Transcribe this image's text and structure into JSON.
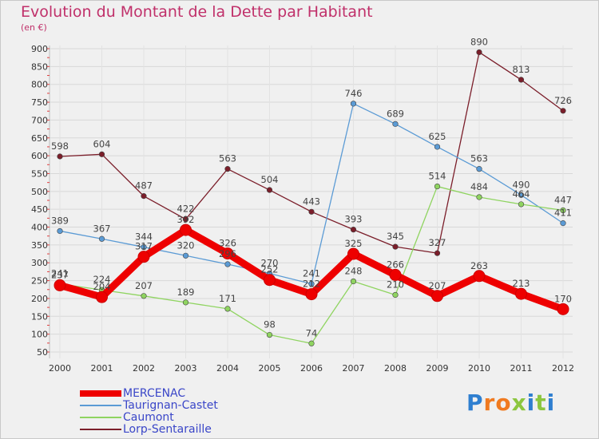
{
  "chart_data": {
    "type": "line",
    "title": "Evolution du Montant de la Dette par Habitant",
    "subtitle": "(en €)",
    "xlabel": "",
    "ylabel": "",
    "ylim": [
      50,
      900
    ],
    "yticks": [
      50,
      100,
      150,
      200,
      250,
      300,
      350,
      400,
      450,
      500,
      550,
      600,
      650,
      700,
      750,
      800,
      850,
      900
    ],
    "grid": true,
    "legend": "bottom-left",
    "categories": [
      "2000",
      "2001",
      "2002",
      "2003",
      "2004",
      "2005",
      "2006",
      "2007",
      "2008",
      "2009",
      "2010",
      "2011",
      "2012"
    ],
    "series": [
      {
        "name": "MERCENAC",
        "color": "#ee0000",
        "values": [
          237,
          204,
          317,
          392,
          326,
          252,
          212,
          325,
          266,
          207,
          263,
          213,
          170
        ],
        "labels": [
          "237",
          "204",
          "317",
          "392",
          "326",
          "252",
          "212",
          "325",
          "266",
          "207",
          "263",
          "213",
          "170"
        ]
      },
      {
        "name": "Taurignan-Castet",
        "color": "#5b9bd5",
        "values": [
          389,
          367,
          344,
          320,
          296,
          270,
          241,
          746,
          689,
          625,
          563,
          490,
          411
        ],
        "labels": [
          "389",
          "367",
          "344",
          "320",
          "296",
          "270",
          "241",
          "746",
          "689",
          "625",
          "563",
          "490",
          "411"
        ]
      },
      {
        "name": "Caumont",
        "color": "#8fd460",
        "values": [
          241,
          224,
          207,
          189,
          171,
          98,
          74,
          248,
          210,
          514,
          484,
          464,
          447
        ],
        "labels": [
          "241",
          "224",
          "207",
          "189",
          "171",
          "98",
          "74",
          "248",
          "210",
          "514",
          "484",
          "464",
          "447"
        ]
      },
      {
        "name": "Lorp-Sentaraille",
        "color": "#7b1e2a",
        "values": [
          598,
          604,
          487,
          422,
          563,
          504,
          443,
          393,
          345,
          327,
          890,
          813,
          726
        ],
        "labels": [
          "598",
          "604",
          "487",
          "422",
          "563",
          "504",
          "443",
          "393",
          "345",
          "327",
          "890",
          "813",
          "726"
        ]
      }
    ]
  },
  "logo": {
    "text": "Proxiti",
    "letters": [
      {
        "char": "P",
        "color": "#2f7fd0"
      },
      {
        "char": "r",
        "color": "#f07a20"
      },
      {
        "char": "o",
        "color": "#f07a20"
      },
      {
        "char": "x",
        "color": "#8cc63f"
      },
      {
        "char": "i",
        "color": "#2f7fd0"
      },
      {
        "char": "t",
        "color": "#8cc63f"
      },
      {
        "char": "i",
        "color": "#2f7fd0"
      }
    ]
  },
  "colors": {
    "title": "#c0306a",
    "axis_text": "#333333",
    "grid": "#d8d8d8",
    "background": "#f0f0f0"
  }
}
